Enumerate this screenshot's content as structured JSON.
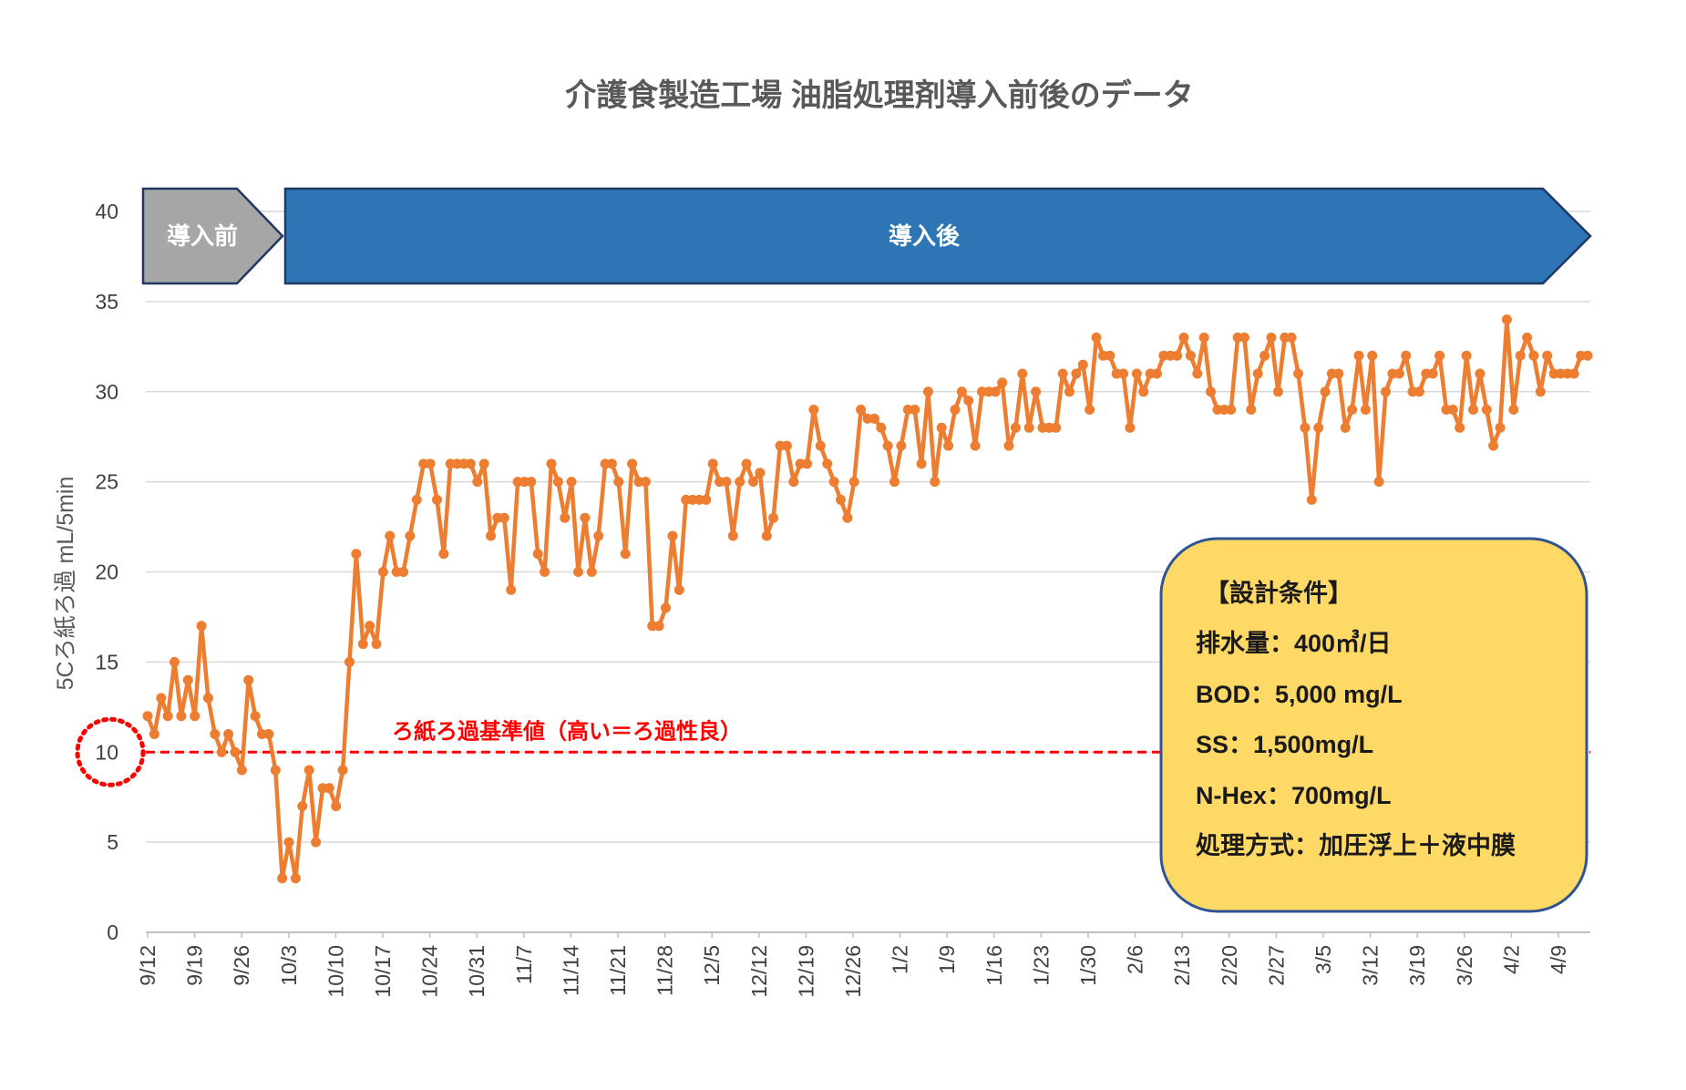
{
  "chart_data": {
    "type": "line",
    "title": "介護食製造工場 油脂処理剤導入前後のデータ",
    "ylabel": "5Cろ紙ろ過 mL/5min",
    "xlabel": "",
    "ylim": [
      0,
      40
    ],
    "yticks": [
      0,
      5,
      10,
      15,
      20,
      25,
      30,
      35,
      40
    ],
    "grid": true,
    "series_color": "#ED7D31",
    "xtick_labels": [
      "9/12",
      "9/19",
      "9/26",
      "10/3",
      "10/10",
      "10/17",
      "10/24",
      "10/31",
      "11/7",
      "11/14",
      "11/21",
      "11/28",
      "12/5",
      "12/12",
      "12/19",
      "12/26",
      "1/2",
      "1/9",
      "1/16",
      "1/23",
      "1/30",
      "2/6",
      "2/13",
      "2/20",
      "2/27",
      "3/5",
      "3/12",
      "3/19",
      "3/26",
      "4/2",
      "4/9"
    ],
    "x_start": "9/12",
    "values": [
      12,
      11,
      13,
      12,
      15,
      12,
      14,
      12,
      17,
      13,
      11,
      10,
      11,
      10,
      9,
      14,
      12,
      11,
      11,
      9,
      3,
      5,
      3,
      7,
      9,
      5,
      8,
      8,
      7,
      9,
      15,
      21,
      16,
      17,
      16,
      20,
      22,
      20,
      20,
      22,
      24,
      26,
      26,
      24,
      21,
      26,
      26,
      26,
      26,
      25,
      26,
      22,
      23,
      23,
      19,
      25,
      25,
      25,
      21,
      20,
      26,
      25,
      23,
      25,
      20,
      23,
      20,
      22,
      26,
      26,
      25,
      21,
      26,
      25,
      25,
      17,
      17,
      18,
      22,
      19,
      24,
      24,
      24,
      24,
      26,
      25,
      25,
      22,
      25,
      26,
      25,
      25.5,
      22,
      23,
      27,
      27,
      25,
      26,
      26,
      29,
      27,
      26,
      25,
      24,
      23,
      25,
      29,
      28.5,
      28.5,
      28,
      27,
      25,
      27,
      29,
      29,
      26,
      30,
      25,
      28,
      27,
      29,
      30,
      29.5,
      27,
      30,
      30,
      30,
      30.5,
      27,
      28,
      31,
      28,
      30,
      28,
      28,
      28,
      31,
      30,
      31,
      31.5,
      29,
      33,
      32,
      32,
      31,
      31,
      28,
      31,
      30,
      31,
      31,
      32,
      32,
      32,
      33,
      32,
      31,
      33,
      30,
      29,
      29,
      29,
      33,
      33,
      29,
      31,
      32,
      33,
      30,
      33,
      33,
      31,
      28,
      24,
      28,
      30,
      31,
      31,
      28,
      29,
      32,
      29,
      32,
      25,
      30,
      31,
      31,
      32,
      30,
      30,
      31,
      31,
      32,
      29,
      29,
      28,
      32,
      29,
      31,
      29,
      27,
      28,
      34,
      29,
      32,
      33,
      32,
      30,
      32,
      31,
      31,
      31,
      31,
      32,
      32
    ],
    "reference_line": {
      "value": 10,
      "label": "ろ紙ろ過基準値（高い＝ろ過性良）",
      "color": "#FF0000"
    },
    "phases": [
      {
        "label": "導入前",
        "color": "#A6A6A6"
      },
      {
        "label": "導入後",
        "color": "#2E75B6"
      }
    ],
    "info_box": {
      "lines": [
        "【設計条件】",
        "排水量：400㎥/日",
        "BOD：5,000 mg/L",
        "SS：1,500mg/L",
        "N-Hex：700mg/L",
        "処理方式：加圧浮上＋液中膜"
      ],
      "fill": "#FFD966",
      "border": "#2F5496"
    }
  }
}
